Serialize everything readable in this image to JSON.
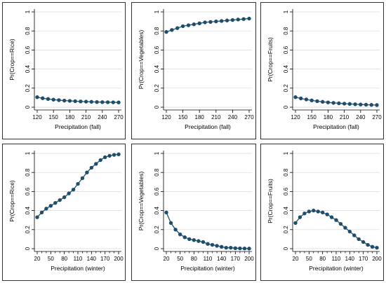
{
  "figure_background": "#ffffff",
  "colors": {
    "marker": "#1f4e6b",
    "line": "#1f4e6b",
    "axis": "#000000",
    "grid": "#d9d9d9",
    "border": "#000000"
  },
  "chart_data": [
    {
      "type": "line",
      "xlabel": "Precipitation (fall)",
      "ylabel": "Pr(Crop==Rice)",
      "xticks": [
        120,
        150,
        180,
        210,
        240,
        270
      ],
      "yticks": [
        0,
        0.2,
        0.4,
        0.6,
        0.8,
        1
      ],
      "xlim": [
        120,
        270
      ],
      "ylim": [
        0,
        1
      ],
      "x": [
        120,
        130,
        140,
        150,
        160,
        170,
        180,
        190,
        200,
        210,
        220,
        230,
        240,
        250,
        260,
        270
      ],
      "y": [
        0.105,
        0.094,
        0.086,
        0.079,
        0.074,
        0.069,
        0.066,
        0.063,
        0.06,
        0.058,
        0.056,
        0.054,
        0.053,
        0.052,
        0.051,
        0.05
      ]
    },
    {
      "type": "line",
      "xlabel": "Precipitation (fall)",
      "ylabel": "Pr(Crop==Vegetables)",
      "xticks": [
        120,
        150,
        180,
        210,
        240,
        270
      ],
      "yticks": [
        0,
        0.2,
        0.4,
        0.6,
        0.8,
        1
      ],
      "xlim": [
        120,
        270
      ],
      "ylim": [
        0,
        1
      ],
      "x": [
        120,
        130,
        140,
        150,
        160,
        170,
        180,
        190,
        200,
        210,
        220,
        230,
        240,
        250,
        260,
        270
      ],
      "y": [
        0.79,
        0.81,
        0.83,
        0.85,
        0.86,
        0.87,
        0.88,
        0.89,
        0.895,
        0.9,
        0.905,
        0.91,
        0.915,
        0.92,
        0.925,
        0.93
      ]
    },
    {
      "type": "line",
      "xlabel": "Precipitation (fall)",
      "ylabel": "Pr(Crop==Fruits)",
      "xticks": [
        120,
        150,
        180,
        210,
        240,
        270
      ],
      "yticks": [
        0,
        0.2,
        0.4,
        0.6,
        0.8,
        1
      ],
      "xlim": [
        120,
        270
      ],
      "ylim": [
        0,
        1
      ],
      "x": [
        120,
        130,
        140,
        150,
        160,
        170,
        180,
        190,
        200,
        210,
        220,
        230,
        240,
        250,
        260,
        270
      ],
      "y": [
        0.105,
        0.092,
        0.081,
        0.071,
        0.063,
        0.056,
        0.05,
        0.045,
        0.041,
        0.037,
        0.034,
        0.031,
        0.028,
        0.026,
        0.024,
        0.022
      ]
    },
    {
      "type": "line",
      "xlabel": "Precipitation (winter)",
      "ylabel": "Pr(Crop==Rice)",
      "xticks": [
        20,
        50,
        80,
        110,
        140,
        170,
        200
      ],
      "xtick_labels": [
        "20",
        "50",
        "80",
        "110",
        "140",
        "170",
        "200"
      ],
      "minor_xticks": [
        30,
        40,
        60,
        70,
        90,
        100,
        120,
        130,
        150,
        160,
        180,
        190
      ],
      "yticks": [
        0,
        0.2,
        0.4,
        0.6,
        0.8,
        1
      ],
      "xlim": [
        20,
        200
      ],
      "ylim": [
        0,
        1
      ],
      "x": [
        20,
        30,
        40,
        50,
        60,
        70,
        80,
        90,
        100,
        110,
        120,
        130,
        140,
        150,
        160,
        170,
        180,
        190,
        200
      ],
      "y": [
        0.33,
        0.38,
        0.42,
        0.45,
        0.48,
        0.51,
        0.54,
        0.58,
        0.62,
        0.68,
        0.74,
        0.8,
        0.85,
        0.89,
        0.93,
        0.96,
        0.975,
        0.985,
        0.99
      ]
    },
    {
      "type": "line",
      "xlabel": "Precipitation (winter)",
      "ylabel": "Pr(Crop==Vegetables)",
      "xticks": [
        20,
        50,
        80,
        110,
        140,
        170,
        200
      ],
      "xtick_labels": [
        "20",
        "50",
        "80",
        "110",
        "140",
        "170",
        "200"
      ],
      "minor_xticks": [
        30,
        40,
        60,
        70,
        90,
        100,
        120,
        130,
        150,
        160,
        180,
        190
      ],
      "yticks": [
        0,
        0.2,
        0.4,
        0.6,
        0.8,
        1
      ],
      "xlim": [
        20,
        200
      ],
      "ylim": [
        0,
        1
      ],
      "x": [
        20,
        30,
        40,
        50,
        60,
        70,
        80,
        90,
        100,
        110,
        120,
        130,
        140,
        150,
        160,
        170,
        180,
        190,
        200
      ],
      "y": [
        0.38,
        0.27,
        0.2,
        0.15,
        0.12,
        0.1,
        0.09,
        0.08,
        0.07,
        0.05,
        0.04,
        0.03,
        0.02,
        0.01,
        0.01,
        0.005,
        0.003,
        0.002,
        0.001
      ]
    },
    {
      "type": "line",
      "xlabel": "Precipitation (winter)",
      "ylabel": "Pr(Crop==Fruits)",
      "xticks": [
        20,
        50,
        80,
        110,
        140,
        170,
        200
      ],
      "xtick_labels": [
        "20",
        "50",
        "80",
        "110",
        "140",
        "170",
        "200"
      ],
      "minor_xticks": [
        30,
        40,
        60,
        70,
        90,
        100,
        120,
        130,
        150,
        160,
        180,
        190
      ],
      "yticks": [
        0,
        0.2,
        0.4,
        0.6,
        0.8,
        1
      ],
      "xlim": [
        20,
        200
      ],
      "ylim": [
        0,
        1
      ],
      "x": [
        20,
        30,
        40,
        50,
        60,
        70,
        80,
        90,
        100,
        110,
        120,
        130,
        140,
        150,
        160,
        170,
        180,
        190,
        200
      ],
      "y": [
        0.27,
        0.33,
        0.37,
        0.39,
        0.4,
        0.39,
        0.38,
        0.36,
        0.33,
        0.3,
        0.26,
        0.22,
        0.18,
        0.14,
        0.1,
        0.07,
        0.04,
        0.02,
        0.01
      ]
    }
  ]
}
